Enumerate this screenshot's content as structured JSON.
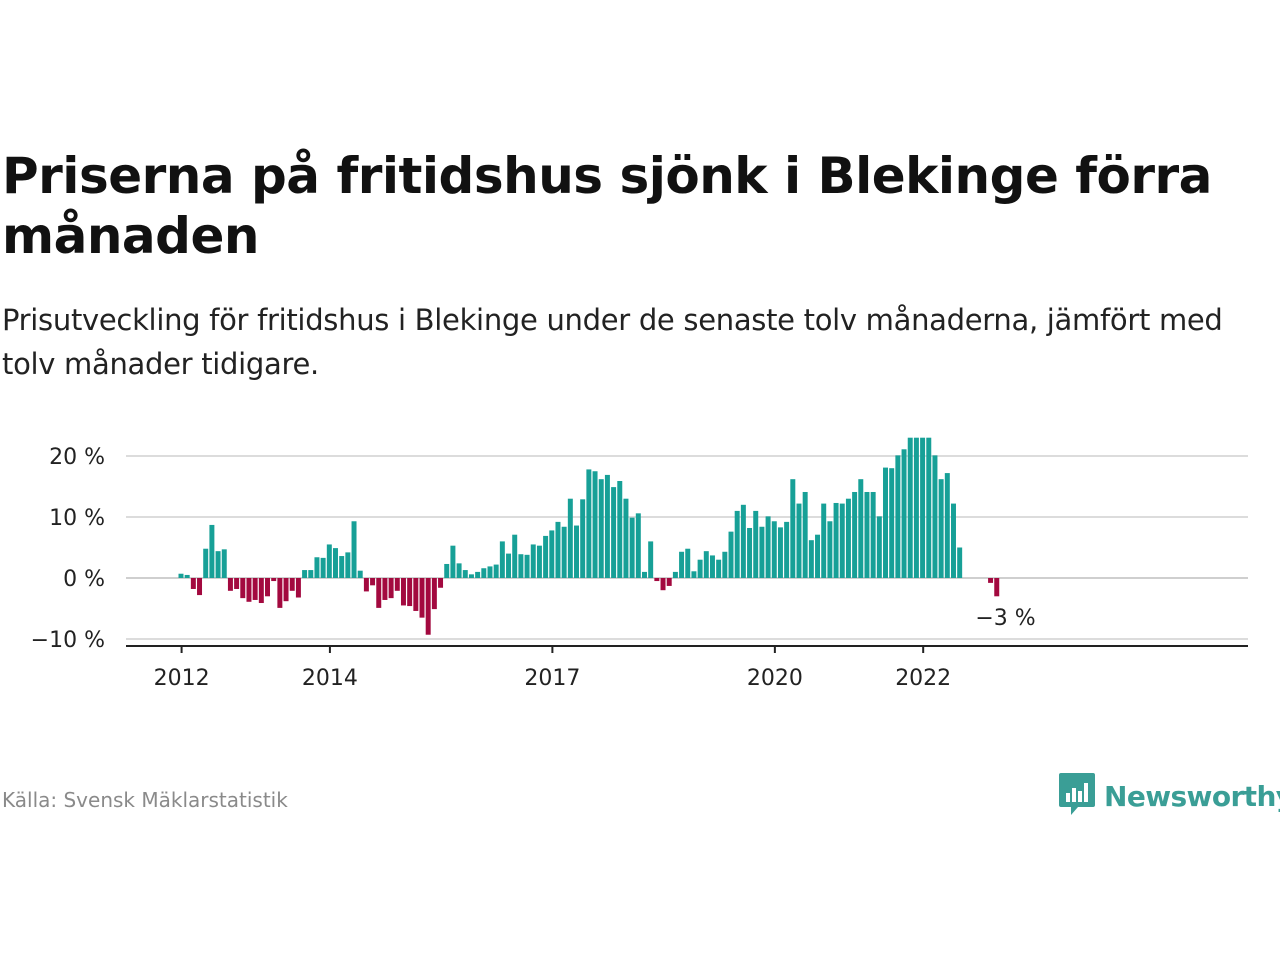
{
  "title": "Priserna på fritidshus sjönk i Blekinge förra månaden",
  "subtitle": "Prisutveckling för fritidshus i Blekinge under de senaste tolv månaderna, jämfört med tolv månader tidigare.",
  "source": "Källa: Svensk Mäklarstatistik",
  "brand": {
    "name": "Newsworthy",
    "icon": "newsworthy-logo-icon",
    "color": "#3a9e96"
  },
  "chart_data": {
    "type": "bar",
    "title": "",
    "xlabel": "",
    "ylabel": "",
    "ylim": [
      -10,
      23
    ],
    "grid": true,
    "y_ticks": [
      {
        "value": 20,
        "label": "20 %"
      },
      {
        "value": 10,
        "label": "10 %"
      },
      {
        "value": 0,
        "label": "0 %"
      },
      {
        "value": -10,
        "label": "−10 %"
      }
    ],
    "x_ticks": [
      {
        "date": "2012-01",
        "label": "2012"
      },
      {
        "date": "2014-01",
        "label": "2014"
      },
      {
        "date": "2017-01",
        "label": "2017"
      },
      {
        "date": "2020-01",
        "label": "2020"
      },
      {
        "date": "2022-01",
        "label": "2022"
      }
    ],
    "colors": {
      "positive": "#17a097",
      "negative": "#a3093f"
    },
    "annotation": {
      "date": "2023-02",
      "label": "−3 %"
    },
    "start": "2012-01",
    "values": [
      0.7,
      0.5,
      -1.8,
      -2.8,
      4.8,
      8.7,
      4.4,
      4.7,
      -2.1,
      -1.8,
      -3.3,
      -3.9,
      -3.6,
      -4.1,
      -3.0,
      -0.5,
      -4.9,
      -3.8,
      -2.1,
      -3.2,
      1.3,
      1.3,
      3.4,
      3.3,
      5.5,
      4.9,
      3.6,
      4.2,
      9.3,
      1.2,
      -2.2,
      -1.2,
      -4.9,
      -3.6,
      -3.3,
      -2.1,
      -4.5,
      -4.6,
      -5.4,
      -6.5,
      -9.3,
      -5.1,
      -1.6,
      2.3,
      5.3,
      2.4,
      1.3,
      0.6,
      1.0,
      1.6,
      1.9,
      2.2,
      6.0,
      4.0,
      7.1,
      3.9,
      3.8,
      5.5,
      5.3,
      6.9,
      7.8,
      9.2,
      8.4,
      13.0,
      8.6,
      12.9,
      17.8,
      17.5,
      16.2,
      16.9,
      14.9,
      15.9,
      13.0,
      9.9,
      10.6,
      1.0,
      6.0,
      -0.5,
      -2.0,
      -1.3,
      1.0,
      4.3,
      4.8,
      1.1,
      3.0,
      4.4,
      3.7,
      3.0,
      4.3,
      7.6,
      11.0,
      12.0,
      8.2,
      11.0,
      8.4,
      10.1,
      9.3,
      8.3,
      9.2,
      16.2,
      12.2,
      14.1,
      6.2,
      7.1,
      12.2,
      9.3,
      12.3,
      12.2,
      13.0,
      14.1,
      16.2,
      14.1,
      14.1,
      10.1,
      18.1,
      18.0,
      20.1,
      21.1,
      23.0,
      23.0,
      23.0,
      23.0,
      20.1,
      16.2,
      17.2,
      12.2,
      5.0,
      null,
      null,
      null,
      null,
      -0.8,
      -3.0
    ]
  }
}
